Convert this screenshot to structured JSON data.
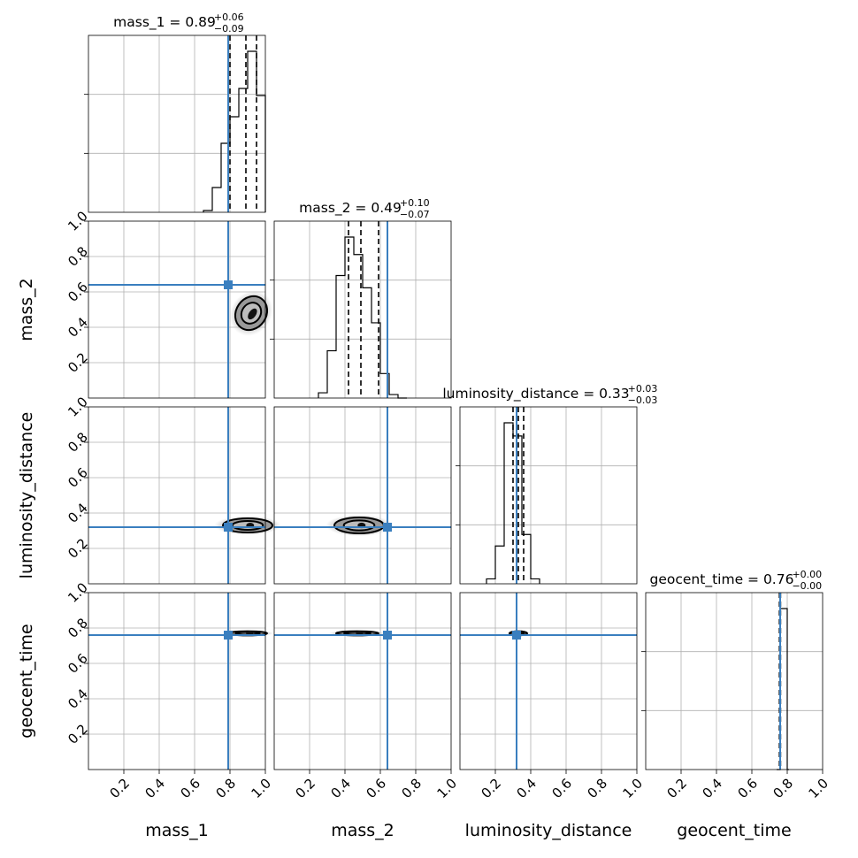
{
  "truth_color": "#3a7fbf",
  "chart_data": {
    "type": "corner",
    "parameters": [
      "mass_1",
      "mass_2",
      "luminosity_distance",
      "geocent_time"
    ],
    "truths": [
      0.79,
      0.64,
      0.32,
      0.76
    ],
    "ranges": [
      [
        0.0,
        1.0
      ],
      [
        0.0,
        1.0
      ],
      [
        0.0,
        1.0
      ],
      [
        0.0,
        1.0
      ]
    ],
    "x_tick_labels": [
      "0.2",
      "0.4",
      "0.6",
      "0.8",
      "1.0"
    ],
    "y_tick_labels": [
      "0.2",
      "0.4",
      "0.6",
      "0.8",
      "1.0"
    ],
    "grid": true,
    "titles": [
      {
        "name": "mass_1",
        "median": "0.89",
        "plus": "+0.06",
        "minus": "−0.09"
      },
      {
        "name": "mass_2",
        "median": "0.49",
        "plus": "+0.10",
        "minus": "−0.07"
      },
      {
        "name": "luminosity_distance",
        "median": "0.33",
        "plus": "+0.03",
        "minus": "−0.03"
      },
      {
        "name": "geocent_time",
        "median": "0.76",
        "plus": "+0.00",
        "minus": "−0.00"
      }
    ],
    "quantiles": [
      [
        0.8,
        0.89,
        0.95
      ],
      [
        0.42,
        0.49,
        0.59
      ],
      [
        0.3,
        0.33,
        0.36
      ],
      [
        0.756,
        0.76,
        0.762
      ]
    ],
    "histograms": [
      {
        "bins": [
          0.65,
          0.7,
          0.75,
          0.8,
          0.85,
          0.9,
          0.95,
          1.0
        ],
        "counts": [
          1,
          14,
          39,
          54,
          70,
          91,
          66
        ]
      },
      {
        "bins": [
          0.25,
          0.3,
          0.35,
          0.4,
          0.45,
          0.5,
          0.55,
          0.6,
          0.65,
          0.7,
          0.75
        ],
        "counts": [
          3,
          27,
          70,
          92,
          82,
          63,
          43,
          14,
          2,
          0
        ]
      },
      {
        "bins": [
          0.15,
          0.2,
          0.25,
          0.3,
          0.35,
          0.4,
          0.45
        ],
        "counts": [
          3,
          23,
          98,
          90,
          30,
          3
        ]
      },
      {
        "bins": [
          0.74,
          0.75,
          0.76,
          0.77,
          0.78,
          0.79,
          0.8,
          0.81
        ],
        "counts": [
          0,
          0,
          100,
          100,
          100,
          100,
          0
        ]
      }
    ],
    "posterior_peaks": [
      {
        "row": 1,
        "col": 0,
        "cx": 0.92,
        "cy": 0.48,
        "rx": 0.085,
        "ry": 0.1,
        "rotate": 35
      },
      {
        "row": 2,
        "col": 0,
        "cx": 0.9,
        "cy": 0.33,
        "rx": 0.14,
        "ry": 0.04,
        "rotate": 0
      },
      {
        "row": 2,
        "col": 1,
        "cx": 0.48,
        "cy": 0.33,
        "rx": 0.14,
        "ry": 0.045,
        "rotate": 0
      },
      {
        "row": 3,
        "col": 0,
        "cx": 0.9,
        "cy": 0.77,
        "rx": 0.11,
        "ry": 0.012,
        "rotate": 0
      },
      {
        "row": 3,
        "col": 1,
        "cx": 0.47,
        "cy": 0.77,
        "rx": 0.12,
        "ry": 0.012,
        "rotate": 0
      },
      {
        "row": 3,
        "col": 2,
        "cx": 0.33,
        "cy": 0.77,
        "rx": 0.05,
        "ry": 0.012,
        "rotate": 0
      }
    ]
  }
}
